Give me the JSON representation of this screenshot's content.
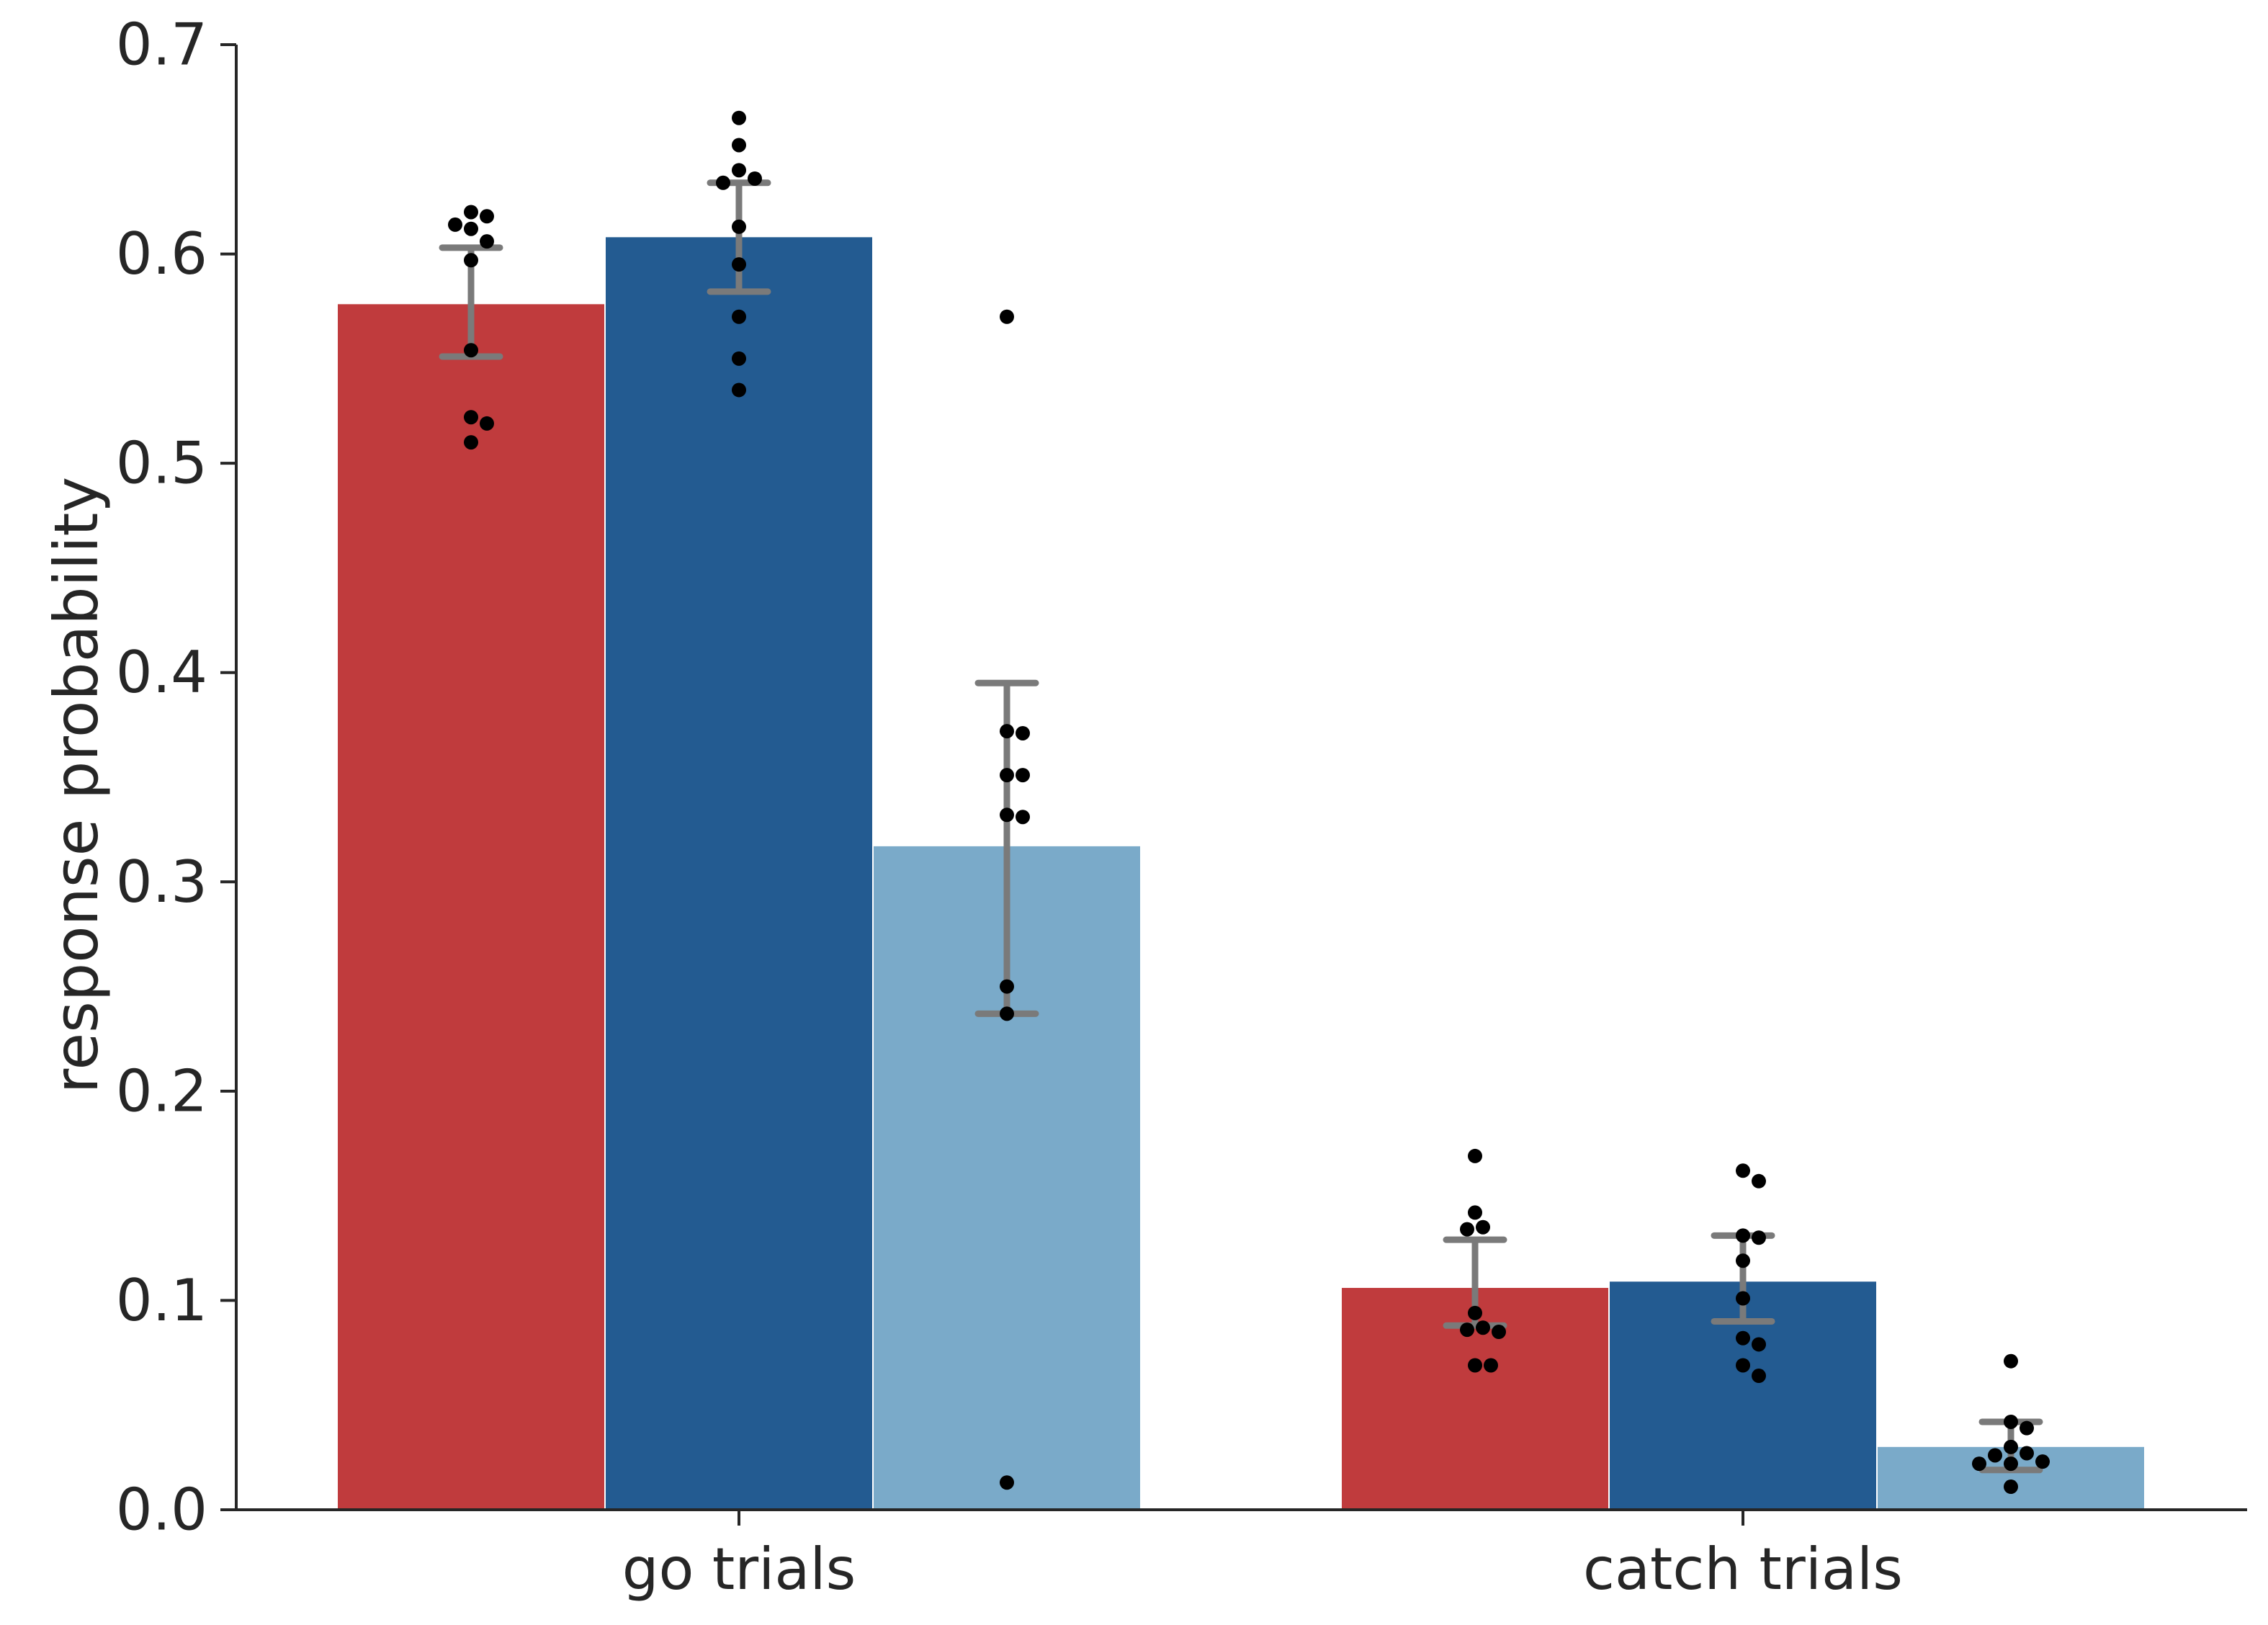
{
  "chart_data": {
    "type": "bar",
    "ylabel": "response probability",
    "xlabel": "",
    "ylim": [
      0,
      0.7
    ],
    "yticks": [
      "0.0",
      "0.1",
      "0.2",
      "0.3",
      "0.4",
      "0.5",
      "0.6",
      "0.7"
    ],
    "categories": [
      "go trials",
      "catch trials"
    ],
    "grid": false,
    "legend": "none",
    "series": [
      {
        "color": "#c03b3d",
        "values": [
          0.576,
          0.106
        ],
        "error_low": [
          0.551,
          0.088
        ],
        "error_high": [
          0.603,
          0.129
        ],
        "points": [
          [
            0.62,
            0.618,
            0.614,
            0.612,
            0.606,
            0.597,
            0.554,
            0.522,
            0.519,
            0.51
          ],
          [
            0.169,
            0.142,
            0.135,
            0.134,
            0.094,
            0.087,
            0.086,
            0.085,
            0.069,
            0.069
          ]
        ]
      },
      {
        "color": "#235b91",
        "values": [
          0.608,
          0.109
        ],
        "error_low": [
          0.582,
          0.09
        ],
        "error_high": [
          0.634,
          0.131
        ],
        "points": [
          [
            0.665,
            0.652,
            0.64,
            0.636,
            0.634,
            0.613,
            0.595,
            0.57,
            0.55,
            0.535
          ],
          [
            0.162,
            0.157,
            0.131,
            0.13,
            0.119,
            0.101,
            0.082,
            0.079,
            0.069,
            0.064
          ]
        ]
      },
      {
        "color": "#7aaac9",
        "values": [
          0.317,
          0.03
        ],
        "error_low": [
          0.237,
          0.019
        ],
        "error_high": [
          0.395,
          0.042
        ],
        "points": [
          [
            0.57,
            0.372,
            0.371,
            0.351,
            0.351,
            0.332,
            0.331,
            0.25,
            0.237,
            0.013
          ],
          [
            0.071,
            0.042,
            0.039,
            0.03,
            0.027,
            0.026,
            0.023,
            0.022,
            0.022,
            0.011
          ]
        ]
      }
    ]
  }
}
